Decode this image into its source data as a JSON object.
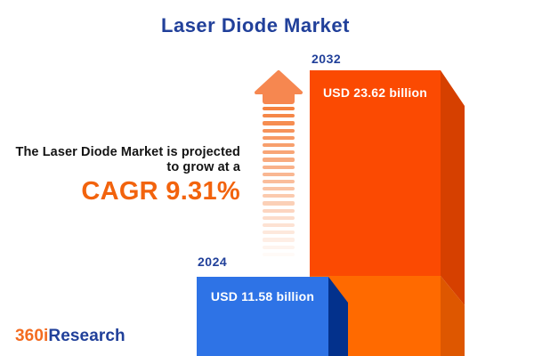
{
  "title": "Laser Diode Market",
  "tagline": {
    "line1": "The Laser Diode Market is projected",
    "line2": "to grow at a",
    "cagr": "CAGR 9.31%"
  },
  "chart_data": {
    "type": "bar",
    "title": "Laser Diode Market",
    "unit": "USD billion",
    "categories": [
      "2024",
      "2032"
    ],
    "values": [
      11.58,
      23.62
    ],
    "value_labels": [
      "USD 11.58 billion",
      "USD 23.62 billion"
    ],
    "cagr_percent": 9.31,
    "grid": false,
    "legend_position": "none",
    "bar_colors": [
      "#2E73E6",
      "#FB4A02"
    ],
    "style": "3d-extruded-bars-with-growth-arrow"
  },
  "logo": {
    "part1": "360i",
    "part2": "Research"
  },
  "colors": {
    "navy": "#21409A",
    "text_black": "#141414",
    "cagr_orange": "#F2630D",
    "orange_front_top": "#FB4A02",
    "orange_front_bottom": "#FF6A00",
    "orange_side_top": "#D64000",
    "orange_side_bottom": "#DE5700",
    "blue_front": "#2E73E6",
    "blue_side": "#03318C",
    "arrow_orange": "#F5813F",
    "logo_orange": "#F36C21",
    "background": "#FFFFFF"
  }
}
